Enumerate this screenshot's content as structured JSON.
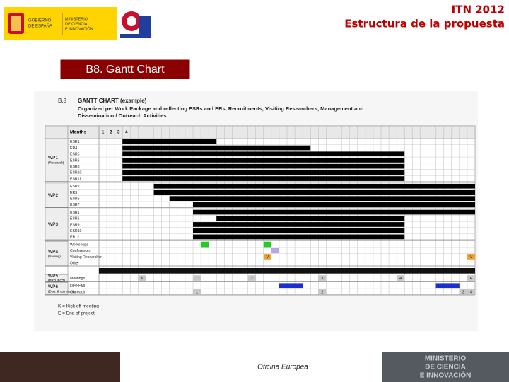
{
  "header": {
    "title": "ITN 2012",
    "subtitle": "Estructura de la propuesta",
    "logo_left": [
      "GOBIERNO",
      "DE ESPAÑA"
    ],
    "logo_ministry": [
      "MINISTERIO",
      "DE CIENCIA",
      "E INNOVACIÓN"
    ]
  },
  "section": {
    "title": "B8. Gantt Chart"
  },
  "gantt": {
    "code": "B.8",
    "title": "GANTT CHART (example)",
    "subtitle": [
      "Organized per Work Package and reflecting ESRs and ERs, Recruitments, Visiting Researchers, Management and",
      "Dissemination / Outreach Activities"
    ],
    "months_label": "Months",
    "month_ticks": [
      1,
      2,
      3,
      4
    ],
    "xlim": [
      0,
      48
    ],
    "groups": [
      {
        "label": "WP1",
        "sublabel": "(Research)",
        "rows": [
          {
            "label": "ESR1",
            "bars": [
              [
                4,
                15
              ]
            ]
          },
          {
            "label": "ER4",
            "bars": [
              [
                4,
                27
              ]
            ]
          },
          {
            "label": "ESR5",
            "bars": [
              [
                4,
                39
              ]
            ]
          },
          {
            "label": "ESR6",
            "bars": [
              [
                4,
                39
              ]
            ]
          },
          {
            "label": "ESR8",
            "bars": [
              [
                4,
                39
              ]
            ]
          },
          {
            "label": "ESR10",
            "bars": [
              [
                4,
                39
              ]
            ]
          },
          {
            "label": "ESR11",
            "bars": [
              [
                4,
                39
              ]
            ]
          }
        ]
      },
      {
        "label": "WP2",
        "rows": [
          {
            "label": "ESR2",
            "bars": [
              [
                8,
                48
              ]
            ]
          },
          {
            "label": "ER3",
            "bars": [
              [
                8,
                48
              ]
            ]
          },
          {
            "label": "ESR5",
            "bars": [
              [
                10,
                48
              ]
            ]
          },
          {
            "label": "ESR7",
            "bars": [
              [
                13,
                48
              ]
            ]
          }
        ]
      },
      {
        "label": "WP3",
        "rows": [
          {
            "label": "ESR1",
            "bars": [
              [
                13,
                48
              ]
            ]
          },
          {
            "label": "ESR6",
            "bars": [
              [
                16,
                39
              ]
            ]
          },
          {
            "label": "ESR9",
            "bars": [
              [
                13,
                39
              ]
            ]
          },
          {
            "label": "ESR10",
            "bars": [
              [
                13,
                39
              ]
            ]
          },
          {
            "label": "ER12",
            "bars": [
              [
                13,
                39
              ]
            ]
          }
        ]
      },
      {
        "label": "WP4",
        "sublabel": "(training)",
        "rows": [
          {
            "label": "Workshops",
            "marks": [
              {
                "month": 14,
                "color": "#22cc22"
              },
              {
                "month": 22,
                "color": "#22cc22"
              }
            ]
          },
          {
            "label": "Conferences",
            "marks": [
              {
                "month": 23,
                "color": "#b8a4e6"
              }
            ]
          },
          {
            "label": "Visiting Researcher",
            "marks": [
              {
                "month": 22,
                "label": "V",
                "color": "#f0a030"
              },
              {
                "month": 48,
                "label": "V",
                "color": "#f0a030"
              }
            ]
          },
          {
            "label": "Other"
          }
        ]
      },
      {
        "label": "WP5",
        "sublabel": "(PROJECT)",
        "rows": [
          {
            "label": "Meetings",
            "marks": [
              {
                "month": 6,
                "label": "K",
                "color": "#c8c8c8"
              },
              {
                "month": 13,
                "label": "1",
                "color": "#c8c8c8"
              },
              {
                "month": 20,
                "label": "2",
                "color": "#c8c8c8"
              },
              {
                "month": 29,
                "label": "3",
                "color": "#c8c8c8"
              },
              {
                "month": 39,
                "label": "4",
                "color": "#c8c8c8"
              },
              {
                "month": 48,
                "label": "E",
                "color": "#c8c8c8"
              }
            ]
          }
        ]
      },
      {
        "label": "WP6",
        "sublabel": "(Diss. & outreach)",
        "rows": [
          {
            "label": "DISSEMI.",
            "bars": [
              [
                24,
                26
              ],
              [
                44,
                46
              ]
            ],
            "color": "#1a2fd0"
          },
          {
            "label": "Outreach",
            "marks": [
              {
                "month": 13,
                "label": "1",
                "color": "#c8c8c8"
              },
              {
                "month": 29,
                "label": "2",
                "color": "#c8c8c8"
              },
              {
                "month": 47,
                "label": "3",
                "color": "#c8c8c8"
              },
              {
                "month": 48,
                "label": "4",
                "color": "#c8c8c8"
              }
            ]
          }
        ]
      }
    ],
    "notes": [
      "K = Kick off meeting",
      "E = End of project"
    ]
  },
  "footer": {
    "center": "Oficina Europea",
    "ministry": [
      "MINISTERIO",
      "DE CIENCIA",
      "E INNOVACIÓN"
    ]
  }
}
